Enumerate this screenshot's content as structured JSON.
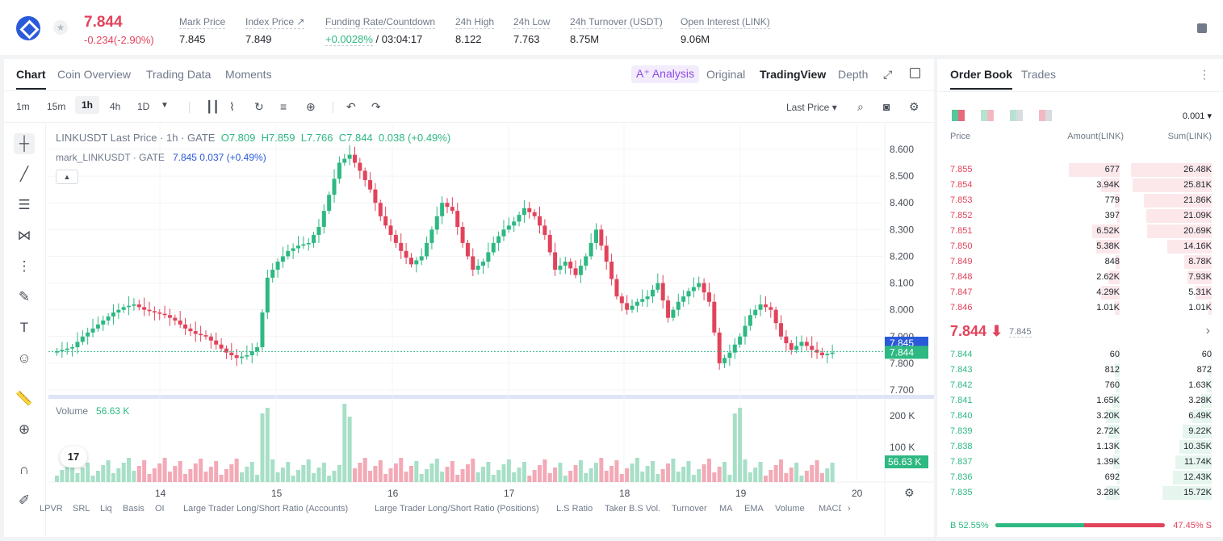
{
  "ticker": {
    "price": "7.844",
    "change": "-0.234(-2.90%)",
    "stats": [
      {
        "label": "Mark Price",
        "value": "7.845"
      },
      {
        "label": "Index Price ↗",
        "value": "7.849"
      },
      {
        "label": "Funding Rate/Countdown",
        "value_green": "+0.0028%",
        "value": " / 03:04:17"
      },
      {
        "label": "24h High",
        "value": "8.122"
      },
      {
        "label": "24h Low",
        "value": "7.763"
      },
      {
        "label": "24h Turnover (USDT)",
        "value": "8.75M"
      },
      {
        "label": "Open Interest (LINK)",
        "value": "9.06M"
      }
    ]
  },
  "chart_tabs": [
    "Chart",
    "Coin Overview",
    "Trading Data",
    "Moments"
  ],
  "view_tabs": {
    "ai": "A⁺ Analysis",
    "original": "Original",
    "tradingview": "TradingView",
    "depth": "Depth"
  },
  "intervals": [
    "1m",
    "15m",
    "1h",
    "4h",
    "1D"
  ],
  "last_price_selector": "Last Price",
  "legend": {
    "main": "LINKUSDT Last Price · 1h · GATE",
    "o": "O7.809",
    "h": "H7.859",
    "l": "L7.766",
    "c": "C7.844",
    "chg": "0.038 (+0.49%)",
    "mark": "mark_LINKUSDT · GATE",
    "mark_val": "7.845 0.037 (+0.49%)",
    "volume_label": "Volume",
    "volume_val": "56.63 K"
  },
  "axis": {
    "price_ticks": [
      "8.600",
      "8.500",
      "8.400",
      "8.300",
      "8.200",
      "8.100",
      "8.000",
      "7.900",
      "7.800",
      "7.700"
    ],
    "volume_ticks": [
      "200 K",
      "100 K"
    ],
    "x_ticks": [
      "14",
      "15",
      "16",
      "17",
      "18",
      "19",
      "20"
    ],
    "mark_price_tag": "7.845",
    "last_price_tag": "7.844",
    "volume_tag": "56.63 K"
  },
  "indicators": [
    "LPVR",
    "SRL",
    "Liq",
    "Basis",
    "OI",
    "Large Trader Long/Short Ratio (Accounts)",
    "Large Trader Long/Short Ratio (Positions)",
    "L.S Ratio",
    "Taker B.S Vol.",
    "Turnover",
    "MA",
    "EMA",
    "Volume",
    "MACD"
  ],
  "tv_logo": "17",
  "colors": {
    "up": "#2eb882",
    "down": "#e2435b",
    "accent": "#8e4ce6"
  },
  "chart_data": {
    "type": "candlestick",
    "interval": "1h",
    "ylim": [
      7.7,
      8.6
    ],
    "approx_closes": [
      7.85,
      7.86,
      7.9,
      7.93,
      7.96,
      7.99,
      8.01,
      8.02,
      8.0,
      7.99,
      7.98,
      7.96,
      7.93,
      7.91,
      7.9,
      7.87,
      7.84,
      7.82,
      7.83,
      7.86,
      8.12,
      8.18,
      8.22,
      8.24,
      8.25,
      8.31,
      8.43,
      8.55,
      8.58,
      8.52,
      8.45,
      8.35,
      8.28,
      8.22,
      8.17,
      8.2,
      8.3,
      8.4,
      8.37,
      8.25,
      8.15,
      8.18,
      8.25,
      8.3,
      8.33,
      8.38,
      8.35,
      8.28,
      8.15,
      8.18,
      8.13,
      8.2,
      8.3,
      8.18,
      8.05,
      8.0,
      8.03,
      8.05,
      8.1,
      7.97,
      8.03,
      8.07,
      8.1,
      8.03,
      7.8,
      7.84,
      7.9,
      7.98,
      8.02,
      8.0,
      7.9,
      7.85,
      7.88,
      7.85,
      7.83,
      7.84
    ]
  },
  "order_book": {
    "tabs": [
      "Order Book",
      "Trades"
    ],
    "precision": "0.001",
    "headers": {
      "price": "Price",
      "amount": "Amount(LINK)",
      "sum": "Sum(LINK)"
    },
    "asks": [
      {
        "price": "7.855",
        "amount": "677",
        "sum": "26.48K",
        "depth": 0.55,
        "sdepth": 0.95
      },
      {
        "price": "7.854",
        "amount": "3.94K",
        "sum": "25.81K",
        "depth": 0.2,
        "sdepth": 0.93
      },
      {
        "price": "7.853",
        "amount": "779",
        "sum": "21.86K",
        "depth": 0.05,
        "sdepth": 0.8
      },
      {
        "price": "7.852",
        "amount": "397",
        "sum": "21.09K",
        "depth": 0.03,
        "sdepth": 0.77
      },
      {
        "price": "7.851",
        "amount": "6.52K",
        "sum": "20.69K",
        "depth": 0.3,
        "sdepth": 0.76
      },
      {
        "price": "7.850",
        "amount": "5.38K",
        "sum": "14.16K",
        "depth": 0.25,
        "sdepth": 0.52
      },
      {
        "price": "7.849",
        "amount": "848",
        "sum": "8.78K",
        "depth": 0.04,
        "sdepth": 0.32
      },
      {
        "price": "7.848",
        "amount": "2.62K",
        "sum": "7.93K",
        "depth": 0.12,
        "sdepth": 0.29
      },
      {
        "price": "7.847",
        "amount": "4.29K",
        "sum": "5.31K",
        "depth": 0.2,
        "sdepth": 0.19
      },
      {
        "price": "7.846",
        "amount": "1.01K",
        "sum": "1.01K",
        "depth": 0.05,
        "sdepth": 0.04
      }
    ],
    "mid_price": "7.844 ⬇",
    "mid_mark": "7.845",
    "bids": [
      {
        "price": "7.844",
        "amount": "60",
        "sum": "60",
        "depth": 0.01,
        "sdepth": 0.01
      },
      {
        "price": "7.843",
        "amount": "812",
        "sum": "872",
        "depth": 0.05,
        "sdepth": 0.03
      },
      {
        "price": "7.842",
        "amount": "760",
        "sum": "1.63K",
        "depth": 0.04,
        "sdepth": 0.06
      },
      {
        "price": "7.841",
        "amount": "1.65K",
        "sum": "3.28K",
        "depth": 0.08,
        "sdepth": 0.12
      },
      {
        "price": "7.840",
        "amount": "3.20K",
        "sum": "6.49K",
        "depth": 0.15,
        "sdepth": 0.24
      },
      {
        "price": "7.839",
        "amount": "2.72K",
        "sum": "9.22K",
        "depth": 0.13,
        "sdepth": 0.34
      },
      {
        "price": "7.838",
        "amount": "1.13K",
        "sum": "10.35K",
        "depth": 0.05,
        "sdepth": 0.38
      },
      {
        "price": "7.837",
        "amount": "1.39K",
        "sum": "11.74K",
        "depth": 0.07,
        "sdepth": 0.43
      },
      {
        "price": "7.836",
        "amount": "692",
        "sum": "12.43K",
        "depth": 0.03,
        "sdepth": 0.46
      },
      {
        "price": "7.835",
        "amount": "3.28K",
        "sum": "15.72K",
        "depth": 0.15,
        "sdepth": 0.58
      }
    ],
    "buy_ratio": "B 52.55%",
    "sell_ratio": "47.45% S",
    "buy_fraction": 0.5255
  }
}
